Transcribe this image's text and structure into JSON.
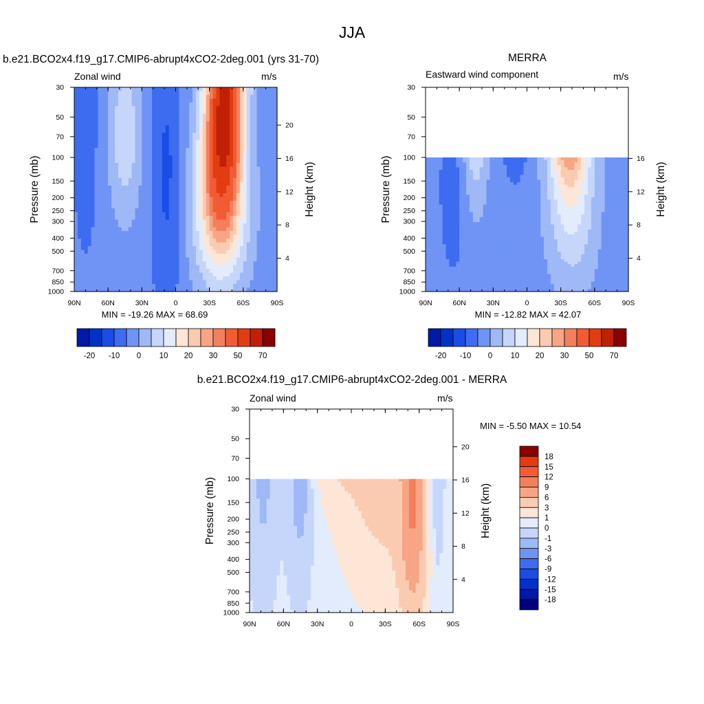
{
  "figure": {
    "title": "JJA"
  },
  "chart_data": [
    {
      "type": "heatmap",
      "id": "model",
      "title": "b.e21.BCO2x4.f19_g17.CMIP6-abrupt4xCO2-2deg.001 (yrs 31-70)",
      "left_label": "Zonal wind",
      "right_label": "m/s",
      "ylabel": "Pressure (mb)",
      "y2label": "Height (km)",
      "x_ticks": [
        "90N",
        "60N",
        "30N",
        "0",
        "30S",
        "60S",
        "90S"
      ],
      "y_ticks": [
        "30",
        "50",
        "70",
        "100",
        "150",
        "200",
        "250",
        "300",
        "400",
        "500",
        "700",
        "850",
        "1000"
      ],
      "height_ticks": [
        "4",
        "8",
        "12",
        "16",
        "20"
      ],
      "xlim": [
        90,
        -90
      ],
      "ylim": [
        1000,
        30
      ],
      "y_scale": "log",
      "minmax_text": "MIN = -19.26  MAX =  68.69",
      "min": -19.26,
      "max": 68.69,
      "colorbar_labels": [
        "-20",
        "-10",
        "0",
        "10",
        "20",
        "30",
        "50",
        "70"
      ],
      "colorbar_orientation": "horizontal"
    },
    {
      "type": "heatmap",
      "id": "obs",
      "title": "MERRA",
      "left_label": "Eastward wind component",
      "right_label": "m/s",
      "ylabel": "Pressure (mb)",
      "y2label": "Height (km)",
      "x_ticks": [
        "90N",
        "60N",
        "30N",
        "0",
        "30S",
        "60S",
        "90S"
      ],
      "y_ticks": [
        "30",
        "50",
        "70",
        "100",
        "150",
        "200",
        "250",
        "300",
        "400",
        "500",
        "700",
        "850",
        "1000"
      ],
      "height_ticks": [
        "4",
        "8",
        "12",
        "16"
      ],
      "xlim": [
        90,
        -90
      ],
      "ylim": [
        1000,
        30
      ],
      "data_top_pressure": 100,
      "y_scale": "log",
      "minmax_text": "MIN = -12.82  MAX =  42.07",
      "min": -12.82,
      "max": 42.07,
      "colorbar_labels": [
        "-20",
        "-10",
        "0",
        "10",
        "20",
        "30",
        "50",
        "70"
      ],
      "colorbar_orientation": "horizontal"
    },
    {
      "type": "heatmap",
      "id": "diff",
      "title": "b.e21.BCO2x4.f19_g17.CMIP6-abrupt4xCO2-2deg.001 - MERRA",
      "left_label": "Zonal wind",
      "right_label": "m/s",
      "ylabel": "Pressure (mb)",
      "y2label": "Height (km)",
      "x_ticks": [
        "90N",
        "60N",
        "30N",
        "0",
        "30S",
        "60S",
        "90S"
      ],
      "y_ticks": [
        "30",
        "50",
        "70",
        "100",
        "150",
        "200",
        "250",
        "300",
        "400",
        "500",
        "700",
        "850",
        "1000"
      ],
      "height_ticks": [
        "4",
        "8",
        "12",
        "16",
        "20"
      ],
      "xlim": [
        90,
        -90
      ],
      "ylim": [
        1000,
        30
      ],
      "data_top_pressure": 100,
      "y_scale": "log",
      "minmax_text": "MIN =  -5.50  MAX =  10.54",
      "min": -5.5,
      "max": 10.54,
      "colorbar_labels": [
        "18",
        "15",
        "12",
        "9",
        "6",
        "3",
        "1",
        "0",
        "-1",
        "-3",
        "-6",
        "-9",
        "-12",
        "-15",
        "-18"
      ],
      "colorbar_orientation": "vertical"
    }
  ],
  "colors": {
    "scale": [
      "#00007f",
      "#0019a8",
      "#0032c8",
      "#1a4ce6",
      "#3d6cf0",
      "#6f94f5",
      "#9fb9f7",
      "#c6d6fb",
      "#e2ecfd",
      "#fde6d6",
      "#fbcbb1",
      "#f7a584",
      "#f47f5d",
      "#f25c34",
      "#e23d12",
      "#c02106",
      "#8a0000"
    ]
  }
}
